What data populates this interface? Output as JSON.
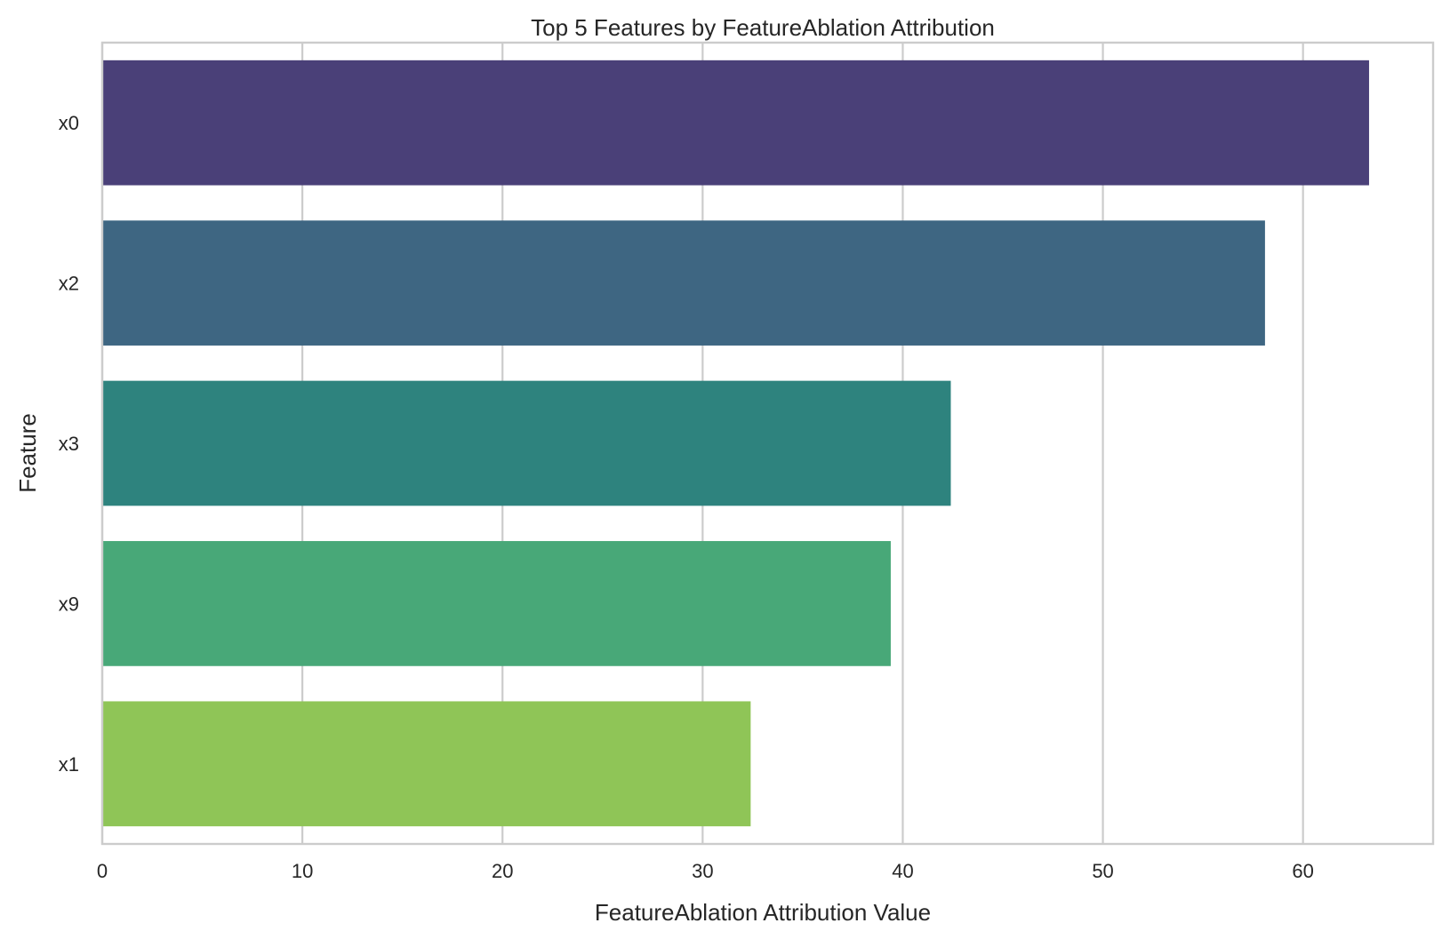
{
  "chart_data": {
    "type": "bar",
    "orientation": "horizontal",
    "title": "Top 5 Features by FeatureAblation Attribution",
    "xlabel": "FeatureAblation Attribution Value",
    "ylabel": "Feature",
    "categories": [
      "x0",
      "x2",
      "x3",
      "x9",
      "x1"
    ],
    "values": [
      63.3,
      58.1,
      42.4,
      39.4,
      32.4
    ],
    "colors": [
      "#4a4078",
      "#3e6682",
      "#2e837e",
      "#48a878",
      "#8fc557"
    ],
    "xlim": [
      0,
      66.5
    ],
    "xticks": [
      0,
      10,
      20,
      30,
      40,
      50,
      60
    ],
    "grid": true,
    "legend": "none"
  }
}
